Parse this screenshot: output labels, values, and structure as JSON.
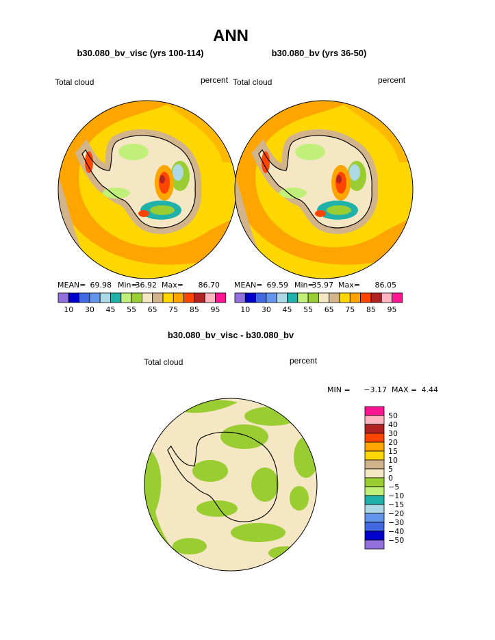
{
  "title": "ANN",
  "panels": [
    {
      "title": "b30.080_bv_visc (yrs 100-114)",
      "left_label": "Total cloud",
      "right_label": "percent",
      "stats": [
        {
          "name": "MEAN=",
          "value": 69.98
        },
        {
          "name": "Min=",
          "value": 36.92
        },
        {
          "name": "Max=",
          "value": 86.7,
          "label": "86.70"
        }
      ]
    },
    {
      "title": "b30.080_bv (yrs 36-50)",
      "left_label": "Total cloud",
      "right_label": "percent",
      "stats": [
        {
          "name": "MEAN=",
          "value": 69.59
        },
        {
          "name": "Min=",
          "value": 35.97
        },
        {
          "name": "Max=",
          "value": 86.05
        }
      ]
    }
  ],
  "colorbar": {
    "colors": [
      "#9370db",
      "#0000cd",
      "#4169e1",
      "#6495ed",
      "#add8e6",
      "#20b2aa",
      "#c0f07a",
      "#9acd32",
      "#f5e6c4",
      "#d2b48c",
      "#ffd700",
      "#ffa500",
      "#ff4500",
      "#b22222",
      "#ffb6c1",
      "#ff1493"
    ],
    "labels": [
      10,
      30,
      45,
      55,
      65,
      75,
      85,
      95
    ]
  },
  "difference": {
    "title": "b30.080_bv_visc - b30.080_bv",
    "left_label": "Total cloud",
    "right_label": "percent",
    "min_name": "MIN =",
    "min": {
      "value": -3.17,
      "label": "−3.17"
    },
    "max_name": "MAX =",
    "max": 4.44,
    "colorbar": {
      "colors": [
        "#ff1493",
        "#ffb6c1",
        "#b22222",
        "#ff4500",
        "#ffa500",
        "#ffd700",
        "#d2b48c",
        "#f5e6c4",
        "#9acd32",
        "#c0f07a",
        "#20b2aa",
        "#add8e6",
        "#6495ed",
        "#4169e1",
        "#0000cd",
        "#9370db"
      ],
      "labels": [
        50,
        40,
        30,
        20,
        15,
        10,
        5,
        0,
        {
          "value": -5,
          "label": "−5"
        },
        {
          "value": -10,
          "label": "−10"
        },
        {
          "value": -15,
          "label": "−15"
        },
        {
          "value": -20,
          "label": "−20"
        },
        {
          "value": -30,
          "label": "−30"
        },
        {
          "value": -40,
          "label": "−40"
        },
        {
          "value": -50,
          "label": "−50"
        }
      ]
    }
  }
}
